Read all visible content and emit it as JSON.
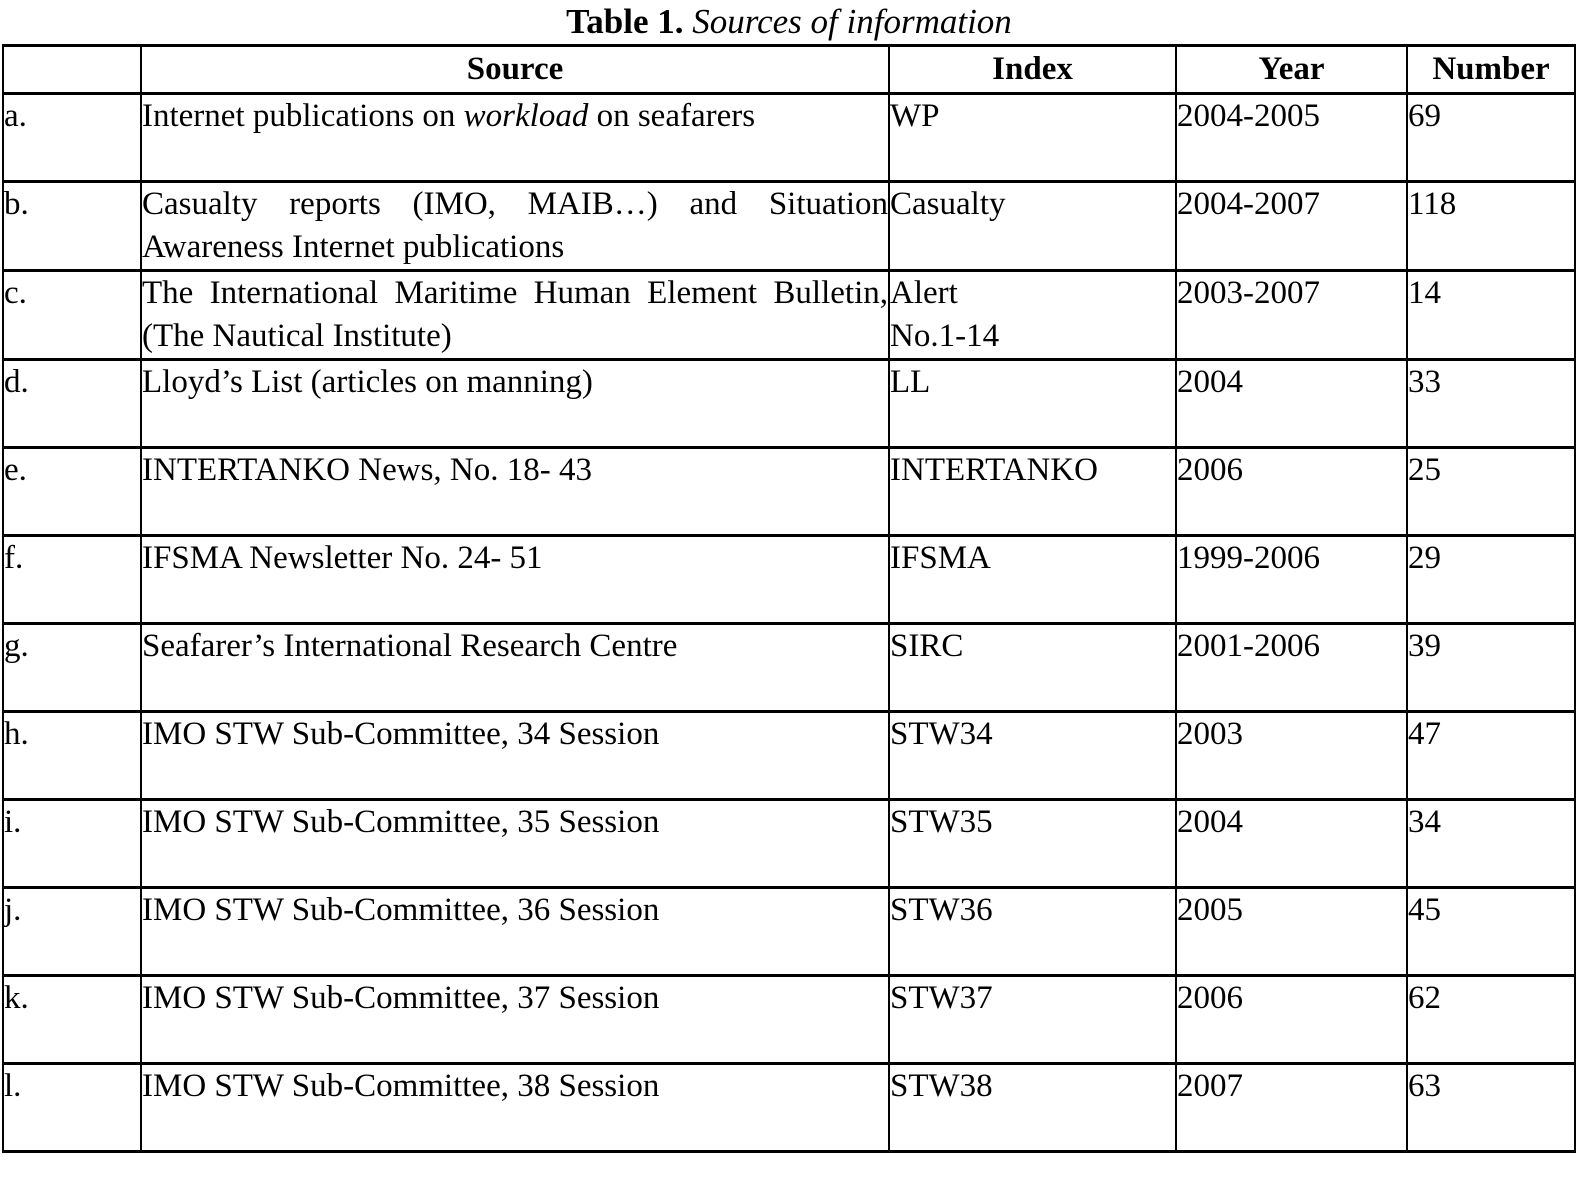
{
  "title": {
    "label": "Table 1.",
    "caption": "Sources of information"
  },
  "table": {
    "headers": [
      "",
      "Source",
      "Index",
      "Year",
      "Number"
    ],
    "rows": [
      {
        "label": "a.",
        "source_segments": [
          {
            "text": "Internet publications on "
          },
          {
            "text": "workload",
            "italic": true
          },
          {
            "text": " on seafarers"
          }
        ],
        "index_lines": [
          "WP"
        ],
        "year": "2004-2005",
        "number": "69"
      },
      {
        "label": "b.",
        "source_segments": [
          {
            "text": "Casualty reports (IMO, MAIB…) and Situation Awareness Internet publications"
          }
        ],
        "index_lines": [
          "Casualty"
        ],
        "year": "2004-2007",
        "number": "118"
      },
      {
        "label": "c.",
        "source_segments": [
          {
            "text": "The International Maritime Human Element Bulletin, (The Nautical Institute)"
          }
        ],
        "index_lines": [
          "Alert",
          "No.1-14"
        ],
        "year": "2003-2007",
        "number": "14"
      },
      {
        "label": "d.",
        "source_segments": [
          {
            "text": "Lloyd’s List (articles on manning)"
          }
        ],
        "index_lines": [
          "LL"
        ],
        "year": "2004",
        "number": "33"
      },
      {
        "label": "e.",
        "source_segments": [
          {
            "text": "INTERTANKO News, No. 18- 43"
          }
        ],
        "index_lines": [
          "INTERTANKO"
        ],
        "year": "2006",
        "number": "25"
      },
      {
        "label": "f.",
        "source_segments": [
          {
            "text": "IFSMA Newsletter No. 24- 51"
          }
        ],
        "index_lines": [
          "IFSMA"
        ],
        "year": "1999-2006",
        "number": "29"
      },
      {
        "label": "g.",
        "source_segments": [
          {
            "text": "Seafarer’s International Research Centre"
          }
        ],
        "index_lines": [
          "SIRC"
        ],
        "year": "2001-2006",
        "number": "39"
      },
      {
        "label": "h.",
        "source_segments": [
          {
            "text": "IMO STW Sub-Committee, 34 Session"
          }
        ],
        "index_lines": [
          "STW34"
        ],
        "year": "2003",
        "number": "47"
      },
      {
        "label": "i.",
        "source_segments": [
          {
            "text": "IMO STW Sub-Committee, 35 Session"
          }
        ],
        "index_lines": [
          "STW35"
        ],
        "year": "2004",
        "number": "34"
      },
      {
        "label": "j.",
        "source_segments": [
          {
            "text": "IMO STW Sub-Committee, 36 Session"
          }
        ],
        "index_lines": [
          "STW36"
        ],
        "year": "2005",
        "number": "45"
      },
      {
        "label": "k.",
        "source_segments": [
          {
            "text": "IMO STW Sub-Committee, 37 Session"
          }
        ],
        "index_lines": [
          "STW37"
        ],
        "year": "2006",
        "number": "62"
      },
      {
        "label": "l.",
        "source_segments": [
          {
            "text": "IMO STW Sub-Committee, 38 Session"
          }
        ],
        "index_lines": [
          "STW38"
        ],
        "year": "2007",
        "number": "63"
      }
    ]
  },
  "colors": {
    "text": "#000000",
    "border": "#000000",
    "background": "#ffffff"
  }
}
